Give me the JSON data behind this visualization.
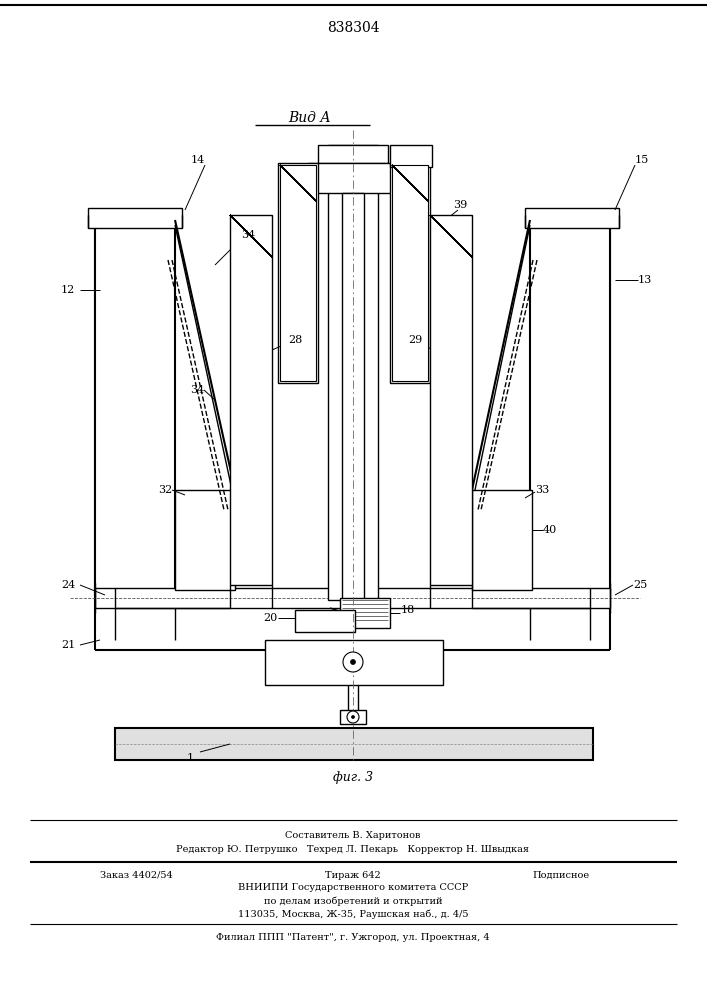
{
  "patent_number": "838304",
  "view_label": "Вид А",
  "fig_label": "фиг. 3",
  "bg_color": "#ffffff",
  "line_color": "#000000",
  "footer_lines": [
    "Составитель В. Харитонов",
    "Редактор Ю. Петрушко   Техред Л. Пекарь   Корректор Н. Швыдкая",
    "Заказ 4402/54          Тираж 642           Подписное",
    "ВНИИПИ Государственного комитета СССР",
    "по делам изобретений и открытий",
    "113035, Москва, Ж-35, Раушская наб., д. 4/5",
    "Филиал ППП \"Патент\", г. Ужгород, ул. Проектная, 4"
  ]
}
